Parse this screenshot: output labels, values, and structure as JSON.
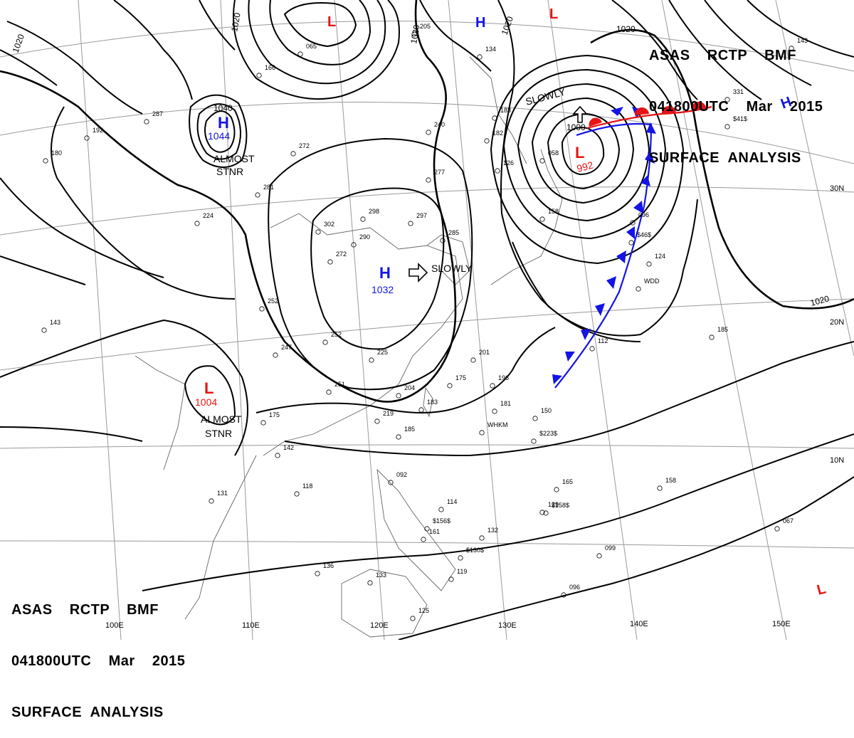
{
  "header": {
    "line1": "ASAS    RCTP    BMF",
    "line2": "041800UTC    Mar    2015",
    "line3": "SURFACE  ANALYSIS"
  },
  "footer": {
    "line1": "ASAS    RCTP    BMF",
    "line2": "041800UTC    Mar    2015",
    "line3": "SURFACE  ANALYSIS"
  },
  "systems": {
    "high_nw": {
      "symbol": "H",
      "value": "1044",
      "note1": "ALMOST",
      "note2": "STNR"
    },
    "high_center": {
      "symbol": "H",
      "value": "1032",
      "motion": "SLOWLY"
    },
    "low_ne": {
      "symbol": "L",
      "value": "992",
      "motion": "SLOWLY"
    },
    "low_sw": {
      "symbol": "L",
      "value": "1004",
      "note1": "ALMOST",
      "note2": "STNR"
    },
    "high_ne_small": {
      "symbol": "H"
    },
    "high_far_ne": {
      "symbol": "H"
    },
    "low_top": {
      "symbol": "L"
    },
    "low_top2": {
      "symbol": "L"
    },
    "low_se": {
      "symbol": "L"
    }
  },
  "isobar_labels": [
    "1020",
    "1020",
    "1020",
    "1020",
    "1040",
    "1020",
    "1000"
  ],
  "lat_labels": [
    "30N",
    "20N",
    "10N"
  ],
  "lon_labels": [
    "100E",
    "110E",
    "120E",
    "130E",
    "140E",
    "150E"
  ],
  "station_texts": [
    "065",
    "166",
    "287",
    "192",
    "180",
    "272",
    "281",
    "252",
    "224",
    "302",
    "290",
    "298",
    "297",
    "285",
    "272",
    "277",
    "240",
    "183",
    "182",
    "134",
    "126",
    "058",
    "158",
    "143",
    "252",
    "247",
    "225",
    "251",
    "201",
    "204",
    "219",
    "183",
    "185",
    "175",
    "196",
    "181",
    "150",
    "175",
    "142",
    "118",
    "131",
    "092",
    "114",
    "161",
    "132",
    "136",
    "133",
    "119",
    "125",
    "112",
    "165",
    "129",
    "158",
    "124",
    "185",
    "331",
    "096",
    "099",
    "067",
    "096",
    "143",
    "205",
    "WHKM",
    "$223$",
    "$158$",
    "$156$",
    "$130$",
    "$41$",
    "$46$",
    "WDD"
  ],
  "colors": {
    "high": "#1414e6",
    "low": "#e61414",
    "line": "#000000",
    "grid": "#999999"
  }
}
